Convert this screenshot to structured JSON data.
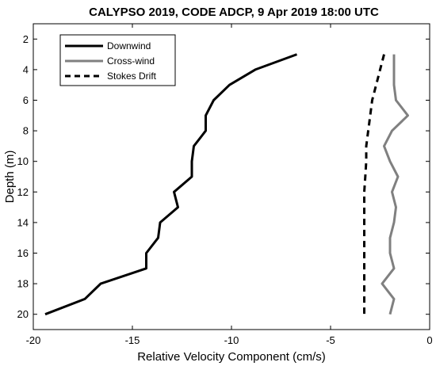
{
  "chart_data": {
    "type": "line",
    "title": "CALYPSO 2019, CODE ADCP, 9 Apr 2019 18:00 UTC",
    "xlabel": "Relative Velocity Component (cm/s)",
    "ylabel": "Depth (m)",
    "xlim": [
      -20,
      0
    ],
    "ylim": [
      1,
      21
    ],
    "y_reversed": true,
    "grid": false,
    "legend_position": "top-left",
    "x_ticks": [
      -20,
      -15,
      -10,
      -5,
      0
    ],
    "y_ticks": [
      2,
      4,
      6,
      8,
      10,
      12,
      14,
      16,
      18,
      20
    ],
    "series": [
      {
        "name": "Downwind",
        "color": "#000000",
        "style": "solid",
        "points": [
          [
            -6.7,
            3
          ],
          [
            -8.8,
            4
          ],
          [
            -10.1,
            5
          ],
          [
            -10.9,
            6
          ],
          [
            -11.3,
            7
          ],
          [
            -11.3,
            8
          ],
          [
            -11.9,
            9
          ],
          [
            -12.0,
            10
          ],
          [
            -12.0,
            11
          ],
          [
            -12.9,
            12
          ],
          [
            -12.7,
            13
          ],
          [
            -13.6,
            14
          ],
          [
            -13.7,
            15
          ],
          [
            -14.3,
            16
          ],
          [
            -14.3,
            17
          ],
          [
            -16.6,
            18
          ],
          [
            -17.4,
            19
          ],
          [
            -19.4,
            20
          ]
        ]
      },
      {
        "name": "Cross-wind",
        "color": "#808080",
        "style": "solid",
        "points": [
          [
            -1.8,
            3
          ],
          [
            -1.8,
            4
          ],
          [
            -1.8,
            5
          ],
          [
            -1.7,
            6
          ],
          [
            -1.1,
            7
          ],
          [
            -1.9,
            8
          ],
          [
            -2.3,
            9
          ],
          [
            -2.0,
            10
          ],
          [
            -1.6,
            11
          ],
          [
            -1.9,
            12
          ],
          [
            -1.7,
            13
          ],
          [
            -1.8,
            14
          ],
          [
            -2.0,
            15
          ],
          [
            -2.0,
            16
          ],
          [
            -1.8,
            17
          ],
          [
            -2.4,
            18
          ],
          [
            -1.8,
            19
          ],
          [
            -2.0,
            20
          ]
        ]
      },
      {
        "name": "Stokes Drift",
        "color": "#000000",
        "style": "dashed",
        "points": [
          [
            -2.3,
            3
          ],
          [
            -2.5,
            4
          ],
          [
            -2.7,
            5
          ],
          [
            -2.9,
            6
          ],
          [
            -3.0,
            7
          ],
          [
            -3.1,
            8
          ],
          [
            -3.2,
            9
          ],
          [
            -3.2,
            10
          ],
          [
            -3.25,
            11
          ],
          [
            -3.3,
            12
          ],
          [
            -3.3,
            13
          ],
          [
            -3.3,
            14
          ],
          [
            -3.3,
            15
          ],
          [
            -3.3,
            16
          ],
          [
            -3.3,
            17
          ],
          [
            -3.3,
            18
          ],
          [
            -3.3,
            19
          ],
          [
            -3.3,
            20
          ]
        ]
      }
    ]
  }
}
